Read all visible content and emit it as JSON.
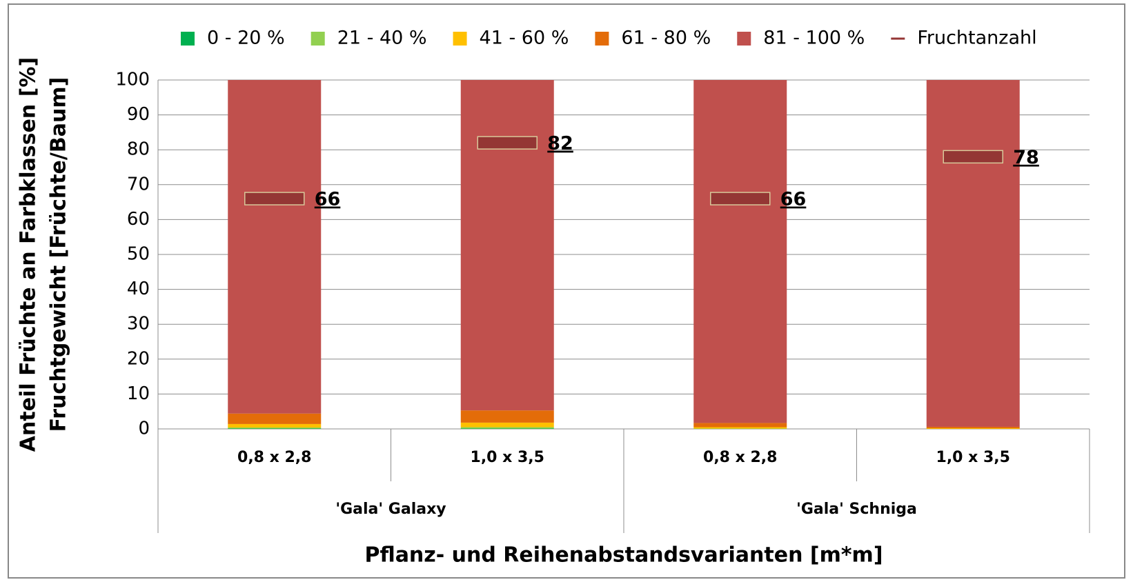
{
  "chart_data": {
    "type": "bar",
    "stacked": true,
    "y_label": "Anteil Früchte an Farbklassen [%]",
    "y2_label": "Fruchtgewicht [Früchte/Baum]",
    "x_label": "Pflanz- und Reihenabstandsvarianten [m*m]",
    "categories": [
      "0,8 x 2,8",
      "1,0 x 3,5",
      "0,8 x 2,8",
      "1,0 x 3,5"
    ],
    "groups": [
      "'Gala' Galaxy",
      "'Gala' Schniga"
    ],
    "series": [
      {
        "name": "0 - 20 %",
        "color": "#00b050",
        "values": [
          0.1,
          0.1,
          0,
          0
        ]
      },
      {
        "name": "21 - 40 %",
        "color": "#92d050",
        "values": [
          0.3,
          0.4,
          0.1,
          0
        ]
      },
      {
        "name": "41 - 60 %",
        "color": "#ffc000",
        "values": [
          1.0,
          1.3,
          0.4,
          0.2
        ]
      },
      {
        "name": "61 - 80 %",
        "color": "#e36c09",
        "values": [
          3.0,
          3.5,
          1.2,
          0.4
        ]
      },
      {
        "name": "81 - 100 %",
        "color": "#c0504d",
        "values": [
          95.6,
          94.7,
          98.3,
          99.4
        ]
      },
      {
        "name": "Fruchtanzahl",
        "color": "#943634",
        "type": "line",
        "values": [
          66,
          82,
          66,
          78
        ]
      }
    ],
    "ylim": [
      0,
      100
    ],
    "yticks": [
      0,
      10,
      20,
      30,
      40,
      50,
      60,
      70,
      80,
      90,
      100
    ],
    "grid": true,
    "legend": "top"
  }
}
